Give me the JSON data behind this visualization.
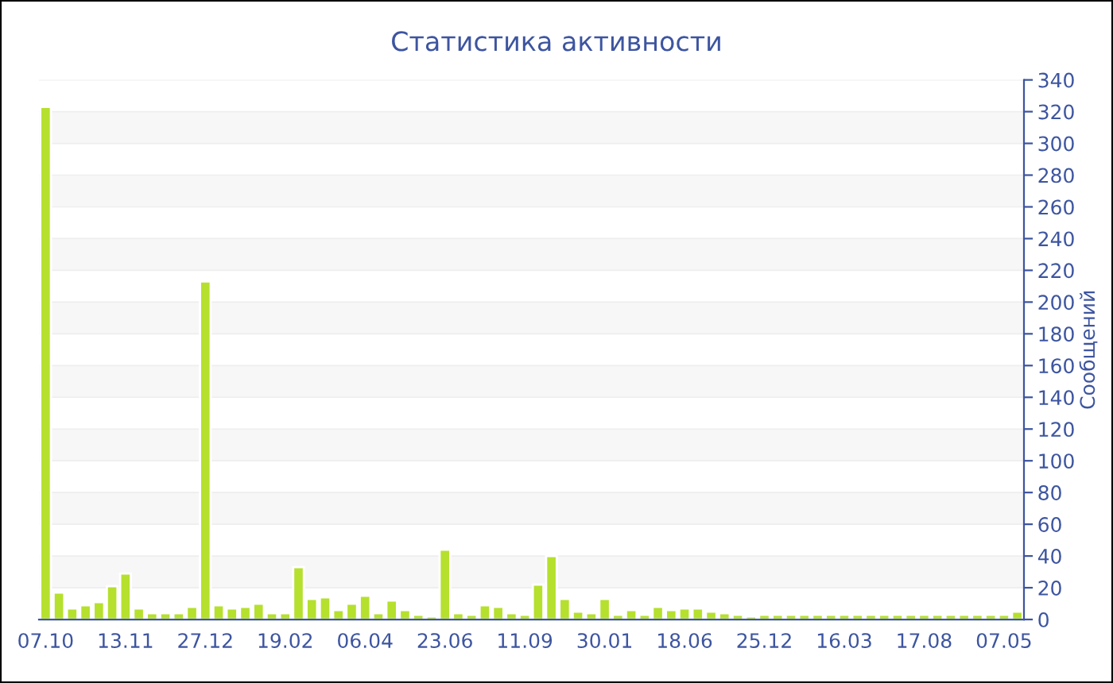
{
  "chart_data": {
    "type": "bar",
    "title": "Статистика активности",
    "ylabel": "Сообщений",
    "categories": [
      "07.10",
      null,
      null,
      null,
      null,
      null,
      "13.11",
      null,
      null,
      null,
      null,
      null,
      "27.12",
      null,
      null,
      null,
      null,
      null,
      "19.02",
      null,
      null,
      null,
      null,
      null,
      "06.04",
      null,
      null,
      null,
      null,
      null,
      "23.06",
      null,
      null,
      null,
      null,
      null,
      "11.09",
      null,
      null,
      null,
      null,
      null,
      "30.01",
      null,
      null,
      null,
      null,
      null,
      "18.06",
      null,
      null,
      null,
      null,
      null,
      "25.12",
      null,
      null,
      null,
      null,
      null,
      "16.03",
      null,
      null,
      null,
      null,
      null,
      "17.08",
      null,
      null,
      null,
      null,
      null,
      "07.05",
      null
    ],
    "values": [
      323,
      17,
      7,
      9,
      11,
      21,
      29,
      7,
      4,
      4,
      4,
      8,
      213,
      9,
      7,
      8,
      10,
      4,
      4,
      33,
      13,
      14,
      6,
      10,
      15,
      4,
      12,
      6,
      3,
      2,
      44,
      4,
      3,
      9,
      8,
      4,
      3,
      22,
      40,
      13,
      5,
      4,
      13,
      3,
      6,
      3,
      8,
      6,
      7,
      7,
      5,
      4,
      3,
      2,
      3,
      3,
      3,
      3,
      3,
      3,
      3,
      3,
      3,
      3,
      3,
      3,
      3,
      3,
      3,
      3,
      3,
      3,
      3,
      5
    ],
    "color": "#b5e02d",
    "ylim": [
      0,
      340
    ],
    "yticks": [
      0,
      20,
      40,
      60,
      80,
      100,
      120,
      140,
      160,
      180,
      200,
      220,
      240,
      260,
      280,
      300,
      320,
      340
    ],
    "grid": "y"
  }
}
